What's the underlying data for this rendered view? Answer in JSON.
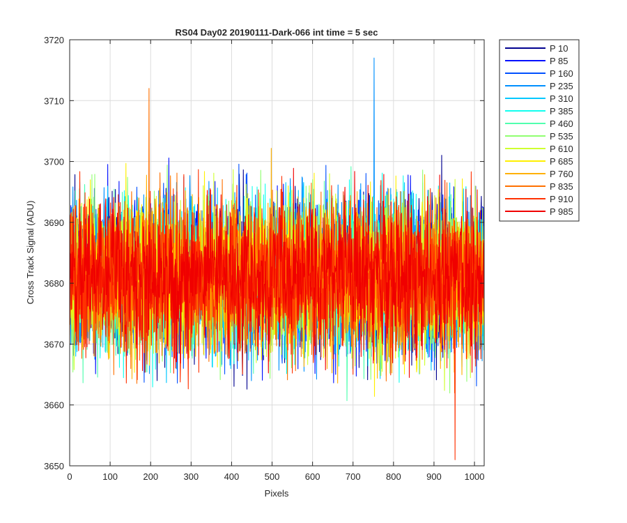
{
  "chart_data": {
    "type": "line",
    "title": "RS04 Day02 20190111-Dark-066 int time = 5 sec",
    "xlabel": "Pixels",
    "ylabel": "Cross Track Signal (ADU)",
    "xlim": [
      0,
      1024
    ],
    "ylim": [
      3650,
      3720
    ],
    "xticks": [
      0,
      100,
      200,
      300,
      400,
      500,
      600,
      700,
      800,
      900,
      1000
    ],
    "yticks": [
      3650,
      3660,
      3670,
      3680,
      3690,
      3700,
      3710,
      3720
    ],
    "grid": true,
    "legend_position": "outside-top-right",
    "noise_profile": {
      "mean": 3681,
      "spread": 6.2,
      "min_observed": 3651,
      "max_observed": 3717
    },
    "series": [
      {
        "name": "P 10",
        "color": "#00008f"
      },
      {
        "name": "P 85",
        "color": "#0010ff"
      },
      {
        "name": "P 160",
        "color": "#0050ff"
      },
      {
        "name": "P 235",
        "color": "#0090ff"
      },
      {
        "name": "P 310",
        "color": "#00c8ff"
      },
      {
        "name": "P 385",
        "color": "#10ffef"
      },
      {
        "name": "P 460",
        "color": "#50ffaf"
      },
      {
        "name": "P 535",
        "color": "#90ff70"
      },
      {
        "name": "P 610",
        "color": "#cfff30"
      },
      {
        "name": "P 685",
        "color": "#ffef00"
      },
      {
        "name": "P 760",
        "color": "#ffb000"
      },
      {
        "name": "P 835",
        "color": "#ff7000"
      },
      {
        "name": "P 910",
        "color": "#ff3000"
      },
      {
        "name": "P 985",
        "color": "#f00000"
      }
    ],
    "annotations": [
      {
        "series": "P 235",
        "x": 752,
        "y": 3717
      },
      {
        "series": "P 835",
        "x": 196,
        "y": 3712
      },
      {
        "series": "P 910",
        "x": 952,
        "y": 3651
      }
    ]
  }
}
